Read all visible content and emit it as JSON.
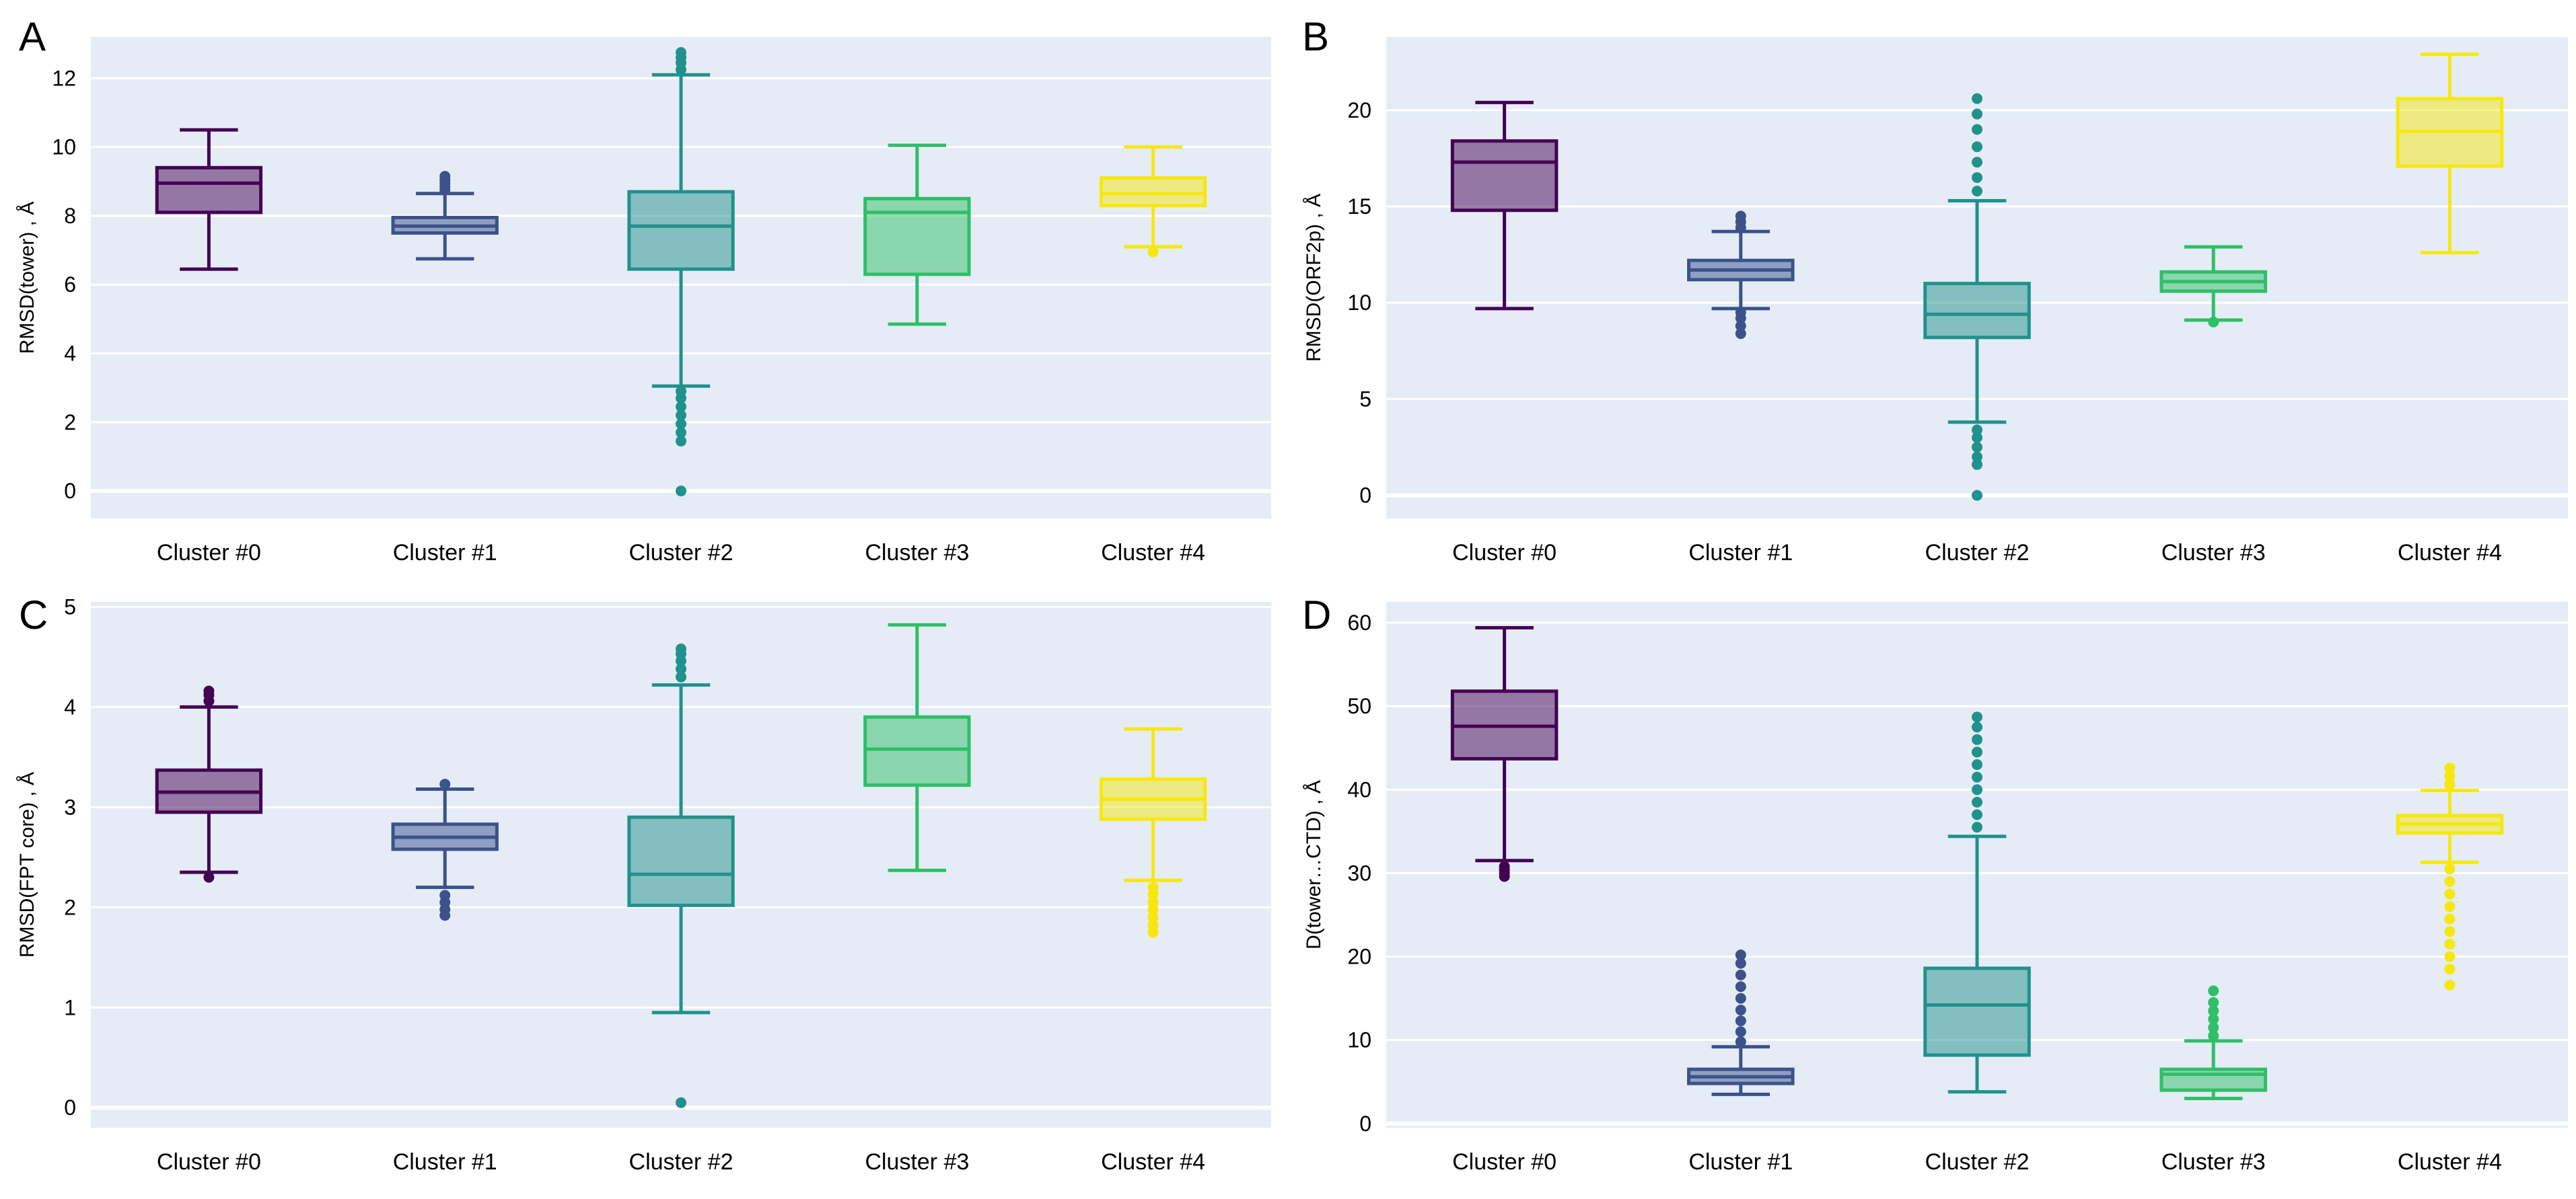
{
  "figure": {
    "category_labels": [
      "Cluster #0",
      "Cluster #1",
      "Cluster #2",
      "Cluster #3",
      "Cluster #4"
    ],
    "colors": {
      "plot_bg": "#e5ecf6",
      "grid": "#ffffff",
      "tick_text": "#2a3f5f",
      "cluster_0": "#440154",
      "cluster_1": "#3b528b",
      "cluster_2": "#21918c",
      "cluster_3": "#2fbf66",
      "cluster_4": "#f6e80f"
    }
  },
  "chart_data": [
    {
      "panel_letter": "A",
      "type": "box",
      "ylabel": "RMSD(tower) , Å",
      "ylim": [
        -0.8,
        13.2
      ],
      "yticks": [
        0,
        2,
        4,
        6,
        8,
        10,
        12
      ],
      "grid": true,
      "boxes": [
        {
          "name": "Cluster #0",
          "q1": 8.1,
          "median": 8.95,
          "q3": 9.4,
          "lower": 6.45,
          "upper": 10.5,
          "outliers": []
        },
        {
          "name": "Cluster #1",
          "q1": 7.5,
          "median": 7.7,
          "q3": 7.95,
          "lower": 6.75,
          "upper": 8.65,
          "outliers": [
            8.75,
            8.85,
            8.95,
            9.05,
            9.15
          ]
        },
        {
          "name": "Cluster #2",
          "q1": 6.45,
          "median": 7.7,
          "q3": 8.7,
          "lower": 3.05,
          "upper": 12.1,
          "outliers": [
            0.0,
            1.45,
            1.7,
            1.95,
            2.2,
            2.45,
            2.7,
            2.9,
            12.25,
            12.45,
            12.6,
            12.75
          ]
        },
        {
          "name": "Cluster #3",
          "q1": 6.3,
          "median": 8.1,
          "q3": 8.5,
          "lower": 4.85,
          "upper": 10.05,
          "outliers": []
        },
        {
          "name": "Cluster #4",
          "q1": 8.3,
          "median": 8.65,
          "q3": 9.1,
          "lower": 7.1,
          "upper": 10.0,
          "outliers": [
            6.95
          ]
        }
      ]
    },
    {
      "panel_letter": "B",
      "type": "box",
      "ylabel": "RMSD(ORF2p) , Å",
      "ylim": [
        -1.2,
        23.8
      ],
      "yticks": [
        0,
        5,
        10,
        15,
        20
      ],
      "grid": true,
      "boxes": [
        {
          "name": "Cluster #0",
          "q1": 14.8,
          "median": 17.3,
          "q3": 18.4,
          "lower": 9.7,
          "upper": 20.4,
          "outliers": []
        },
        {
          "name": "Cluster #1",
          "q1": 11.2,
          "median": 11.7,
          "q3": 12.2,
          "lower": 9.7,
          "upper": 13.7,
          "outliers": [
            8.4,
            8.8,
            9.2,
            9.5,
            13.9,
            14.2,
            14.5
          ]
        },
        {
          "name": "Cluster #2",
          "q1": 8.2,
          "median": 9.4,
          "q3": 11.0,
          "lower": 3.8,
          "upper": 15.3,
          "outliers": [
            0.0,
            1.6,
            2.0,
            2.5,
            3.0,
            3.4,
            15.8,
            16.5,
            17.3,
            18.1,
            19.0,
            19.8,
            20.6
          ]
        },
        {
          "name": "Cluster #3",
          "q1": 10.6,
          "median": 11.1,
          "q3": 11.6,
          "lower": 9.1,
          "upper": 12.9,
          "outliers": [
            9.0
          ]
        },
        {
          "name": "Cluster #4",
          "q1": 17.1,
          "median": 18.9,
          "q3": 20.6,
          "lower": 12.6,
          "upper": 22.9,
          "outliers": []
        }
      ]
    },
    {
      "panel_letter": "C",
      "type": "box",
      "ylabel": "RMSD(FPT core) , Å",
      "ylim": [
        -0.2,
        5.05
      ],
      "yticks": [
        0,
        1,
        2,
        3,
        4,
        5
      ],
      "grid": true,
      "boxes": [
        {
          "name": "Cluster #0",
          "q1": 2.95,
          "median": 3.15,
          "q3": 3.37,
          "lower": 2.35,
          "upper": 4.0,
          "outliers": [
            2.3,
            4.06,
            4.12,
            4.16
          ]
        },
        {
          "name": "Cluster #1",
          "q1": 2.58,
          "median": 2.7,
          "q3": 2.83,
          "lower": 2.2,
          "upper": 3.18,
          "outliers": [
            1.92,
            1.98,
            2.05,
            2.12,
            3.23
          ]
        },
        {
          "name": "Cluster #2",
          "q1": 2.02,
          "median": 2.33,
          "q3": 2.9,
          "lower": 0.95,
          "upper": 4.22,
          "outliers": [
            0.05,
            4.3,
            4.38,
            4.46,
            4.53,
            4.58
          ]
        },
        {
          "name": "Cluster #3",
          "q1": 3.22,
          "median": 3.58,
          "q3": 3.9,
          "lower": 2.37,
          "upper": 4.82,
          "outliers": []
        },
        {
          "name": "Cluster #4",
          "q1": 2.88,
          "median": 3.08,
          "q3": 3.28,
          "lower": 2.27,
          "upper": 3.78,
          "outliers": [
            1.75,
            1.82,
            1.9,
            1.98,
            2.05,
            2.13,
            2.2
          ]
        }
      ]
    },
    {
      "panel_letter": "D",
      "type": "box",
      "ylabel": "D(tower…CTD) , Å",
      "ylim": [
        -0.5,
        62.5
      ],
      "yticks": [
        0,
        10,
        20,
        30,
        40,
        50,
        60
      ],
      "grid": true,
      "boxes": [
        {
          "name": "Cluster #0",
          "q1": 43.7,
          "median": 47.6,
          "q3": 51.8,
          "lower": 31.5,
          "upper": 59.4,
          "outliers": [
            29.6,
            30.0,
            30.4,
            30.8
          ]
        },
        {
          "name": "Cluster #1",
          "q1": 4.8,
          "median": 5.6,
          "q3": 6.5,
          "lower": 3.5,
          "upper": 9.2,
          "outliers": [
            9.8,
            11.0,
            12.3,
            13.6,
            15.0,
            16.4,
            17.8,
            19.2,
            20.2
          ]
        },
        {
          "name": "Cluster #2",
          "q1": 8.2,
          "median": 14.2,
          "q3": 18.6,
          "lower": 3.8,
          "upper": 34.4,
          "outliers": [
            35.5,
            37.0,
            38.5,
            40.0,
            41.5,
            43.0,
            44.5,
            46.0,
            47.5,
            48.7
          ]
        },
        {
          "name": "Cluster #3",
          "q1": 4.0,
          "median": 5.9,
          "q3": 6.5,
          "lower": 3.0,
          "upper": 9.9,
          "outliers": [
            10.5,
            11.5,
            12.5,
            13.5,
            14.5,
            15.9
          ]
        },
        {
          "name": "Cluster #4",
          "q1": 34.8,
          "median": 35.9,
          "q3": 36.9,
          "lower": 31.3,
          "upper": 39.9,
          "outliers": [
            16.6,
            18.5,
            20.0,
            21.5,
            23.0,
            24.5,
            26.0,
            27.5,
            29.0,
            30.5,
            40.6,
            41.6,
            42.6
          ]
        }
      ]
    }
  ]
}
